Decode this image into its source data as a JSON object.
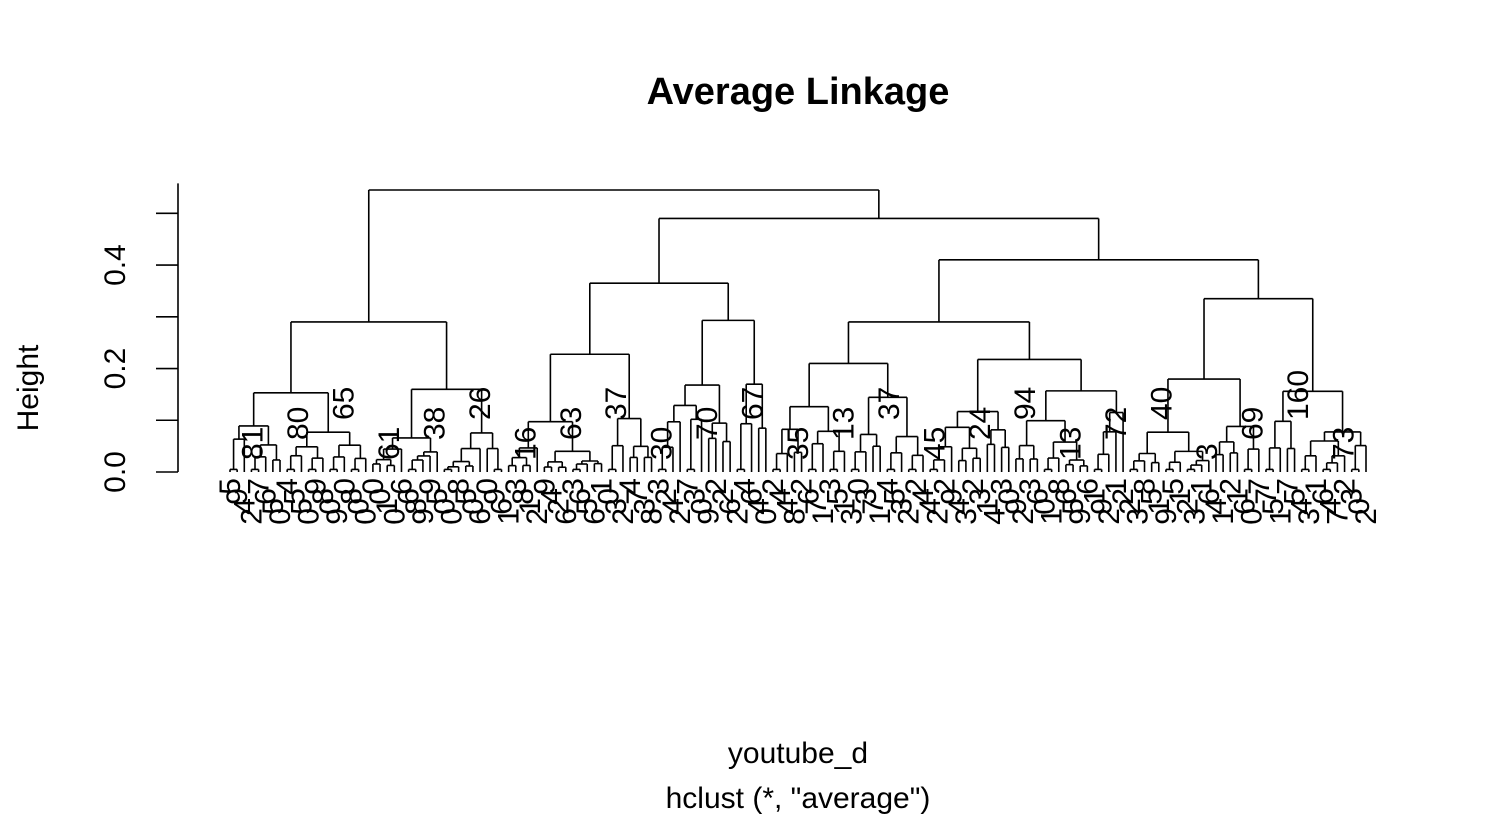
{
  "chart_data": {
    "type": "dendrogram",
    "title": "Average Linkage",
    "xlabel": "youtube_d",
    "sub": "hclust (*, \"average\")",
    "ylabel": "Height",
    "ylim": [
      0,
      0.55
    ],
    "y_ticks": [
      0.0,
      0.2,
      0.4
    ],
    "y_tick_labels": [
      "0.0",
      "0.2",
      "0.4"
    ],
    "merges": [
      {
        "id": "root",
        "height": 0.545,
        "children": [
          "L",
          "R"
        ]
      },
      {
        "id": "L",
        "height": 0.29,
        "children": [
          "L1",
          "L2"
        ]
      },
      {
        "id": "L1",
        "height": 0.1,
        "children": [],
        "leaf_label": "81"
      },
      {
        "id": "L2",
        "height": 0.26,
        "children": [
          "L2a",
          "L2b"
        ]
      },
      {
        "id": "L2a",
        "height": 0.2,
        "children": [
          "L2a1",
          "L2a2"
        ]
      },
      {
        "id": "L2a1",
        "height": 0.12,
        "children": []
      },
      {
        "id": "L2a2",
        "height": 0.08,
        "children": []
      },
      {
        "id": "L2b",
        "height": 0.225,
        "children": [
          "L2b1",
          "L2b2"
        ]
      },
      {
        "id": "L2b1",
        "height": 0.17,
        "children": []
      },
      {
        "id": "L2b2",
        "height": 0.2,
        "children": []
      },
      {
        "id": "R",
        "height": 0.49,
        "children": [
          "RA",
          "RB"
        ]
      },
      {
        "id": "RA",
        "height": 0.365,
        "children": [
          "RA1",
          "RA2"
        ]
      },
      {
        "id": "RA1",
        "height": 0.165,
        "children": []
      },
      {
        "id": "RA2",
        "height": 0.285,
        "children": [
          "RA2a",
          "RA2b"
        ]
      },
      {
        "id": "RA2a",
        "height": 0.12,
        "children": []
      },
      {
        "id": "RA2b",
        "height": 0.265,
        "children": [
          "RA2b1",
          "RA2b2"
        ]
      },
      {
        "id": "RA2b1",
        "height": 0.205,
        "children": []
      },
      {
        "id": "RA2b2",
        "height": 0.255,
        "children": []
      },
      {
        "id": "RB",
        "height": 0.41,
        "children": [
          "RB1",
          "RB2"
        ]
      },
      {
        "id": "RB1",
        "height": 0.29,
        "children": [
          "RB1a",
          "RB1b"
        ]
      },
      {
        "id": "RB1a",
        "height": 0.245,
        "children": []
      },
      {
        "id": "RB1b",
        "height": 0.275,
        "children": []
      },
      {
        "id": "RB2",
        "height": 0.335,
        "children": [
          "RB2a",
          "RB2b"
        ]
      },
      {
        "id": "RB2a",
        "height": 0.295,
        "children": []
      },
      {
        "id": "RB2b",
        "height": 0.315,
        "children": []
      }
    ],
    "leaf_labels": [
      "5",
      "9",
      "4",
      "2",
      "7",
      "6",
      "5",
      "0",
      "4",
      "5",
      "5",
      "0",
      "9",
      "8",
      "0",
      "9",
      "0",
      "8",
      "0",
      "0",
      "0",
      "0",
      "1",
      "0",
      "6",
      "6",
      "8",
      "9",
      "9",
      "5",
      "0",
      "0",
      "8",
      "5",
      "0",
      "6",
      "0",
      "9",
      "6",
      "1",
      "3",
      "8",
      "1",
      "2",
      "9",
      "4",
      "2",
      "6",
      "3",
      "6",
      "5",
      "6",
      "1",
      "0",
      "3",
      "2",
      "4",
      "7",
      "3",
      "8",
      "3",
      "2",
      "4",
      "2",
      "7",
      "3",
      "0",
      "9",
      "2",
      "2",
      "6",
      "2",
      "4",
      "6",
      "4",
      "0",
      "2",
      "4",
      "4",
      "8",
      "2",
      "6",
      "7",
      "1",
      "3",
      "5",
      "1",
      "3",
      "0",
      "3",
      "7",
      "1",
      "4",
      "5",
      "3",
      "2",
      "2",
      "4",
      "4",
      "2",
      "2",
      "9",
      "4",
      "3",
      "2",
      "3",
      "1",
      "4",
      "3",
      "0",
      "9",
      "2",
      "3",
      "6",
      "0",
      "1",
      "8",
      "6",
      "5",
      "9",
      "6",
      "1",
      "9",
      "2",
      "1",
      "2",
      "2",
      "3",
      "8",
      "5",
      "1",
      "9",
      "5",
      "1",
      "2",
      "3",
      "1",
      "6",
      "4",
      "1",
      "2",
      "1",
      "6",
      "0",
      "7",
      "7",
      "5",
      "1",
      "7",
      "5",
      "4",
      "3",
      "1",
      "6",
      "4",
      "7",
      "2",
      "3",
      "0",
      "2"
    ],
    "annotations": [
      "81",
      "80",
      "65",
      "61",
      "38",
      "26",
      "16",
      "63",
      "37",
      "30",
      "70",
      "67",
      "35",
      "13",
      "37",
      "45",
      "24",
      "94",
      "13",
      "72",
      "40",
      "3",
      "69",
      "160",
      "73"
    ]
  }
}
